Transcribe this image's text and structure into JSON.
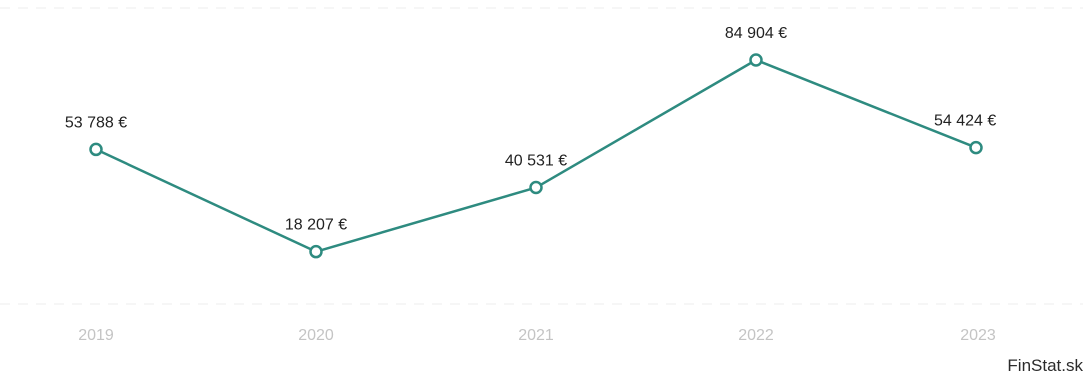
{
  "chart_data": {
    "type": "line",
    "categories": [
      "2019",
      "2020",
      "2021",
      "2022",
      "2023"
    ],
    "series": [
      {
        "values": [
          53788,
          18207,
          40531,
          84904,
          54424
        ]
      }
    ],
    "data_labels": [
      "53 788 €",
      "18 207 €",
      "40 531 €",
      "84 904 €",
      "54 424 €"
    ],
    "ylim": [
      0,
      103000
    ],
    "grid": true,
    "line_color": "#2e8b80"
  },
  "source": "FinStat.sk"
}
